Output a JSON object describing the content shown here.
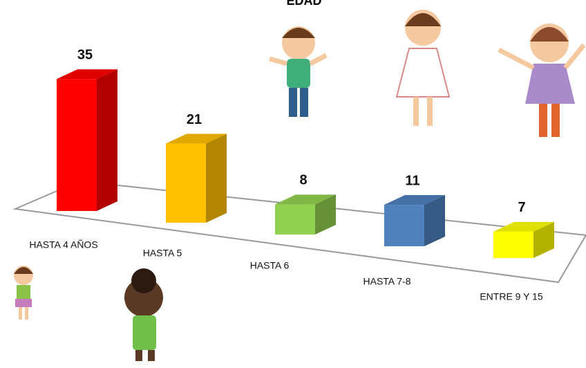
{
  "chart_data": {
    "type": "bar3d",
    "title": "EDAD",
    "categories": [
      "HASTA 4 AÑOS",
      "HASTA 5",
      "HASTA 6",
      "HASTA 7-8",
      "ENTRE 9 Y 15"
    ],
    "values": [
      35,
      21,
      8,
      11,
      7
    ],
    "colors": [
      "#ff0000",
      "#ffc000",
      "#92d050",
      "#4f81bd",
      "#ffff00"
    ]
  }
}
